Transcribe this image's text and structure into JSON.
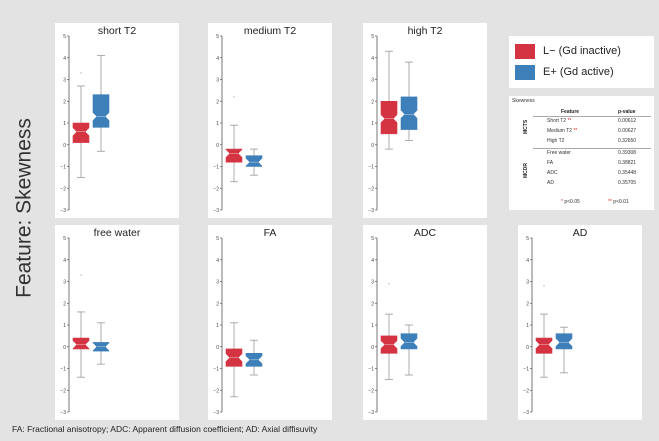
{
  "page": {
    "feature_title": "Feature: Skewness",
    "caption": "FA: Fractional anisotropy; ADC: Apparent diffusion coefficient; AD: Axial diffisuvity"
  },
  "colors": {
    "l_minus": "#d43442",
    "e_plus": "#3d7fb8",
    "whisker": "#999999"
  },
  "legend": {
    "items": [
      {
        "label": "L− (Gd inactive)",
        "color": "#d43442"
      },
      {
        "label": "E+ (Gd active)",
        "color": "#3d7fb8"
      }
    ]
  },
  "ptable": {
    "title": "Skewness",
    "col_feature": "Feature",
    "col_pvalue": "p-value",
    "groups": [
      "MCTS",
      "MCDR"
    ],
    "rows": [
      {
        "feature": "Short T2",
        "stars": "**",
        "p": "0.00612"
      },
      {
        "feature": "Medium T2",
        "stars": "**",
        "p": "0.00627"
      },
      {
        "feature": "High T2",
        "stars": "",
        "p": "0.32650"
      },
      {
        "feature": "Free water",
        "stars": "",
        "p": "0.39308"
      },
      {
        "feature": "FA",
        "stars": "",
        "p": "0.38821"
      },
      {
        "feature": "ADC",
        "stars": "",
        "p": "0.35448"
      },
      {
        "feature": "AD",
        "stars": "",
        "p": "0.35705"
      }
    ],
    "note_star1": "*",
    "note1": "p<0.05",
    "note_star2": "**",
    "note2": "p<0.01"
  },
  "chart_data": {
    "type": "box",
    "ylim": [
      -3,
      5
    ],
    "yticks": [
      -3,
      -2,
      -1,
      0,
      1,
      2,
      3,
      4,
      5
    ],
    "ytick_labels": [
      "−3",
      "−2",
      "−1",
      "0",
      "1",
      "2",
      "3",
      "4",
      "5"
    ],
    "groups": [
      "L− (Gd inactive)",
      "E+ (Gd active)"
    ],
    "panels": [
      {
        "title": "short T2",
        "boxes": [
          {
            "group": "L− (Gd inactive)",
            "whislo": -1.5,
            "q1": 0.1,
            "med": 0.6,
            "q3": 1.0,
            "whishi": 2.7,
            "fliers": [
              3.3
            ]
          },
          {
            "group": "E+ (Gd active)",
            "whislo": -0.3,
            "q1": 0.8,
            "med": 1.3,
            "q3": 2.3,
            "whishi": 4.1,
            "fliers": []
          }
        ]
      },
      {
        "title": "medium T2",
        "boxes": [
          {
            "group": "L− (Gd inactive)",
            "whislo": -1.7,
            "q1": -0.8,
            "med": -0.4,
            "q3": -0.2,
            "whishi": 0.9,
            "fliers": [
              2.2
            ]
          },
          {
            "group": "E+ (Gd active)",
            "whislo": -1.4,
            "q1": -1.0,
            "med": -0.8,
            "q3": -0.5,
            "whishi": -0.2,
            "fliers": []
          }
        ]
      },
      {
        "title": "high T2",
        "boxes": [
          {
            "group": "L− (Gd inactive)",
            "whislo": -0.2,
            "q1": 0.5,
            "med": 1.2,
            "q3": 2.0,
            "whishi": 4.3,
            "fliers": []
          },
          {
            "group": "E+ (Gd active)",
            "whislo": 0.2,
            "q1": 0.7,
            "med": 1.4,
            "q3": 2.2,
            "whishi": 3.8,
            "fliers": []
          }
        ]
      },
      {
        "title": "free water",
        "boxes": [
          {
            "group": "L− (Gd inactive)",
            "whislo": -1.4,
            "q1": -0.1,
            "med": 0.1,
            "q3": 0.4,
            "whishi": 1.6,
            "fliers": [
              3.3
            ]
          },
          {
            "group": "E+ (Gd active)",
            "whislo": -0.8,
            "q1": -0.2,
            "med": 0.0,
            "q3": 0.2,
            "whishi": 1.1,
            "fliers": []
          }
        ]
      },
      {
        "title": "FA",
        "boxes": [
          {
            "group": "L− (Gd inactive)",
            "whislo": -2.3,
            "q1": -0.9,
            "med": -0.5,
            "q3": -0.1,
            "whishi": 1.1,
            "fliers": []
          },
          {
            "group": "E+ (Gd active)",
            "whislo": -1.3,
            "q1": -0.9,
            "med": -0.6,
            "q3": -0.3,
            "whishi": 0.3,
            "fliers": []
          }
        ]
      },
      {
        "title": "ADC",
        "boxes": [
          {
            "group": "L− (Gd inactive)",
            "whislo": -1.5,
            "q1": -0.3,
            "med": 0.1,
            "q3": 0.5,
            "whishi": 1.5,
            "fliers": [
              2.9
            ]
          },
          {
            "group": "E+ (Gd active)",
            "whislo": -1.3,
            "q1": -0.1,
            "med": 0.2,
            "q3": 0.6,
            "whishi": 1.0,
            "fliers": []
          }
        ]
      },
      {
        "title": "AD",
        "boxes": [
          {
            "group": "L− (Gd inactive)",
            "whislo": -1.4,
            "q1": -0.3,
            "med": 0.1,
            "q3": 0.4,
            "whishi": 1.5,
            "fliers": [
              2.8
            ]
          },
          {
            "group": "E+ (Gd active)",
            "whislo": -1.2,
            "q1": -0.1,
            "med": 0.2,
            "q3": 0.6,
            "whishi": 0.9,
            "fliers": []
          }
        ]
      }
    ]
  }
}
